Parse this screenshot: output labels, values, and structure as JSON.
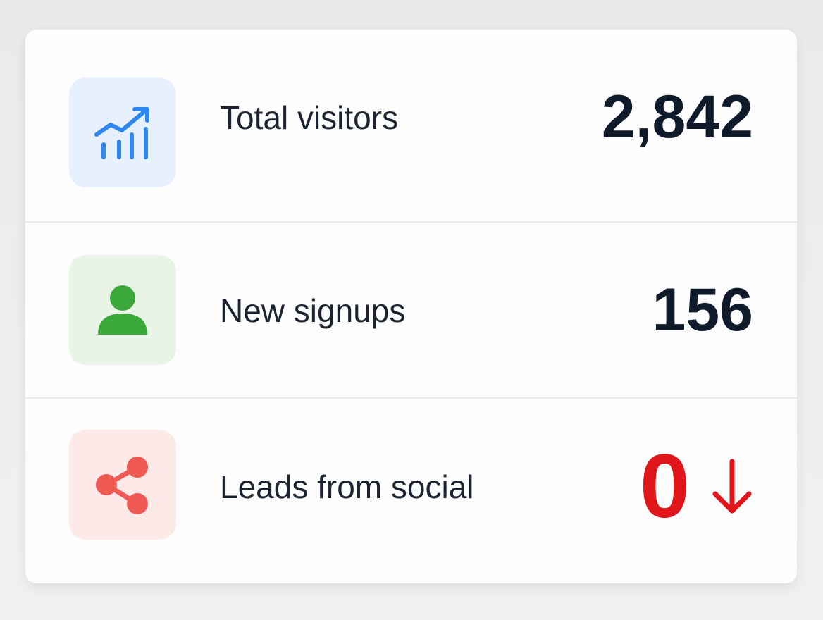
{
  "stats": [
    {
      "label": "Total visitors",
      "value": "2,842"
    },
    {
      "label": "New signups",
      "value": "156"
    },
    {
      "label": "Leads from social",
      "value": "0"
    }
  ]
}
